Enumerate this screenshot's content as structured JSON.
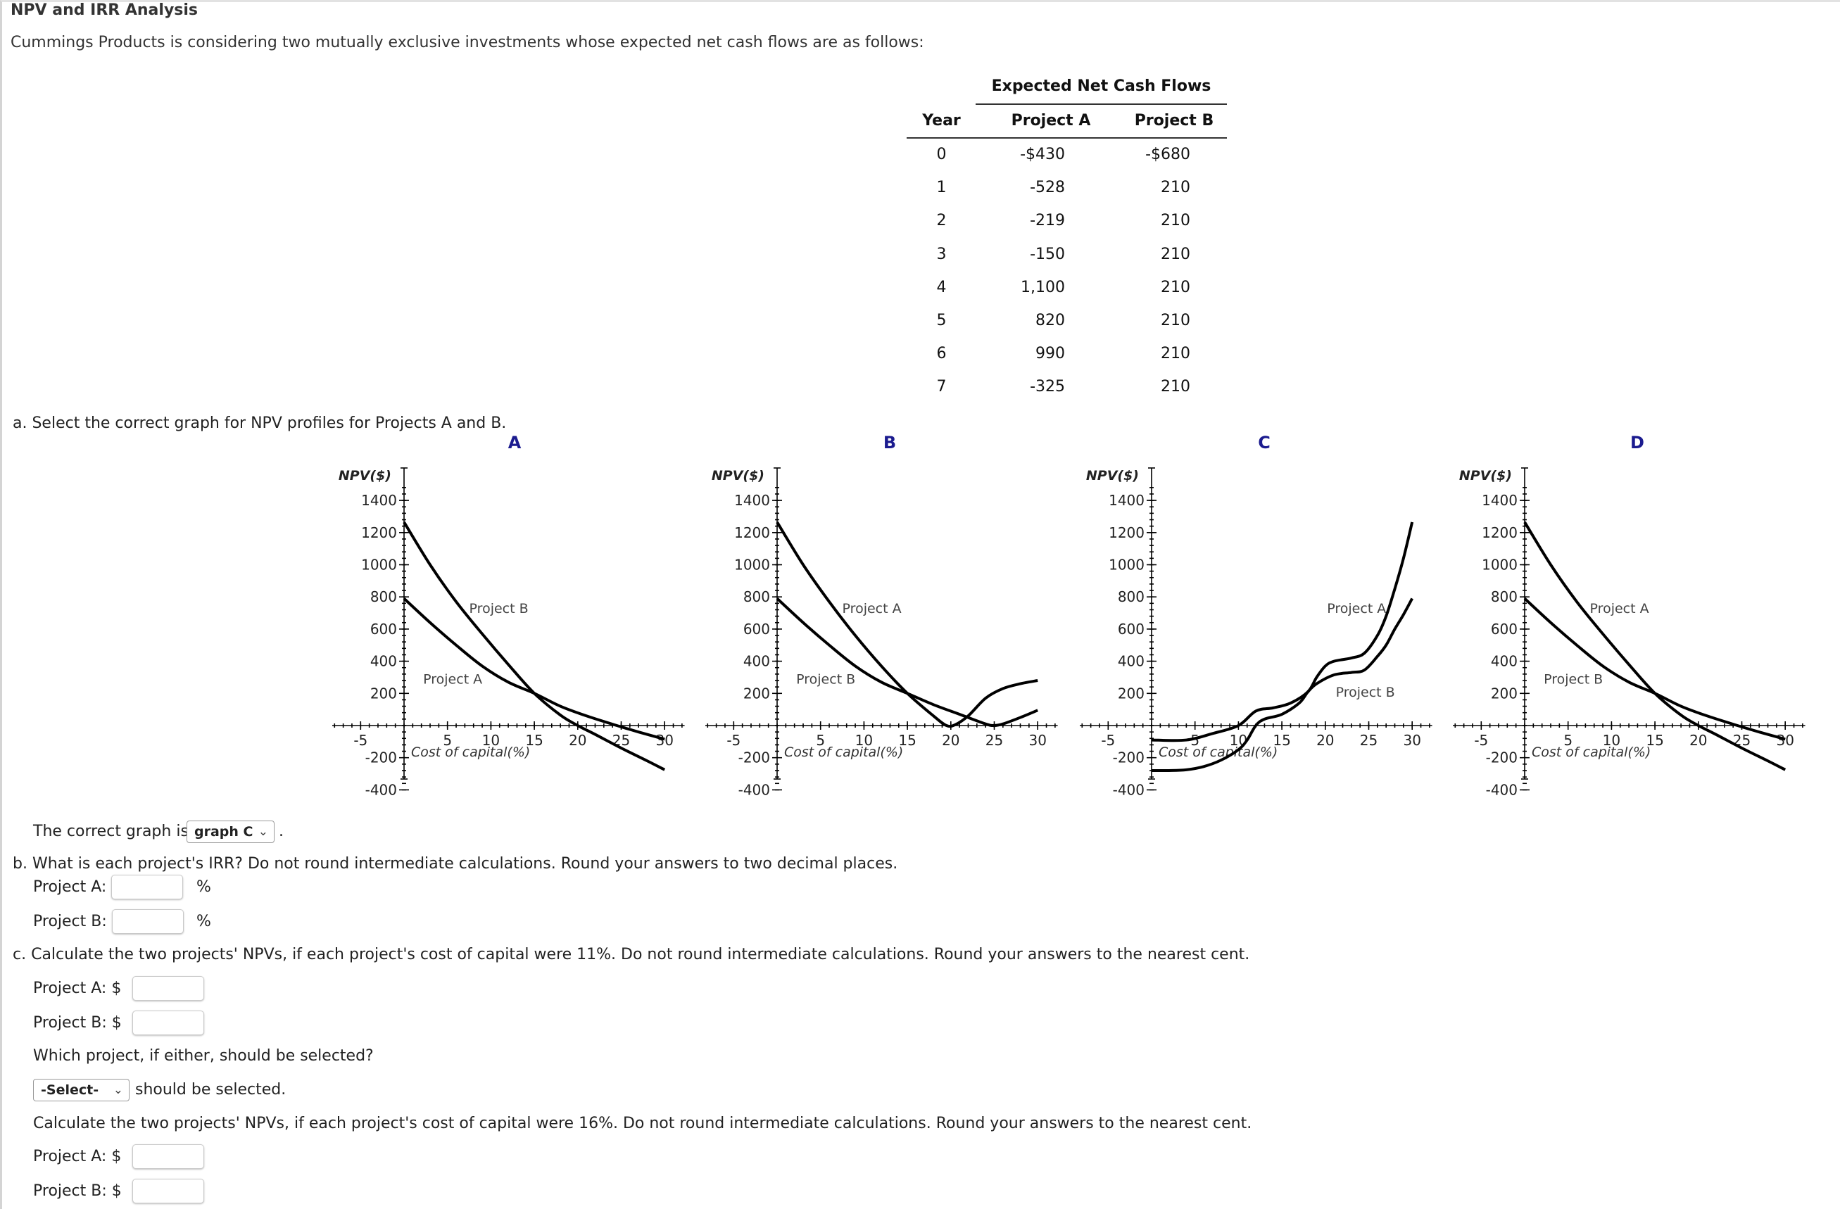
{
  "header": {
    "title": "NPV and IRR Analysis",
    "intro": "Cummings Products is considering two mutually exclusive investments whose expected net cash flows are as follows:"
  },
  "cash_flow_table": {
    "caption": "Expected Net Cash Flows",
    "columns": [
      "Year",
      "Project A",
      "Project B"
    ],
    "rows": [
      {
        "year": "0",
        "a": "-$430",
        "b": "-$680"
      },
      {
        "year": "1",
        "a": "-528",
        "b": "210"
      },
      {
        "year": "2",
        "a": "-219",
        "b": "210"
      },
      {
        "year": "3",
        "a": "-150",
        "b": "210"
      },
      {
        "year": "4",
        "a": "1,100",
        "b": "210"
      },
      {
        "year": "5",
        "a": "820",
        "b": "210"
      },
      {
        "year": "6",
        "a": "990",
        "b": "210"
      },
      {
        "year": "7",
        "a": "-325",
        "b": "210"
      }
    ]
  },
  "part_a": {
    "prompt": "a. Select the correct graph for NPV profiles for Projects A and B.",
    "answer_prefix": "The correct graph is",
    "answer_selected": "graph C",
    "answer_suffix": "."
  },
  "part_b": {
    "prompt": "b. What is each project's IRR? Do not round intermediate calculations. Round your answers to two decimal places.",
    "project_a_label": "Project A:",
    "project_b_label": "Project B:",
    "unit": "%",
    "project_a_value": "",
    "project_b_value": ""
  },
  "part_c": {
    "prompt_11": "c. Calculate the two projects' NPVs, if each project's cost of capital were 11%. Do not round intermediate calculations. Round your answers to the nearest cent.",
    "project_a_label": "Project A: $",
    "project_b_label": "Project B: $",
    "which_prompt": "Which project, if either, should be selected?",
    "which_selected": "-Select-",
    "which_suffix": "should be selected.",
    "prompt_16": "Calculate the two projects' NPVs, if each project's cost of capital were 16%. Do not round intermediate calculations. Round your answers to the nearest cent.",
    "project_a_label_16": "Project A: $",
    "project_b_label_16": "Project B: $"
  },
  "icons": {
    "dropdown": "chevron-down-icon"
  },
  "colors": {
    "graph_letter": "#1b1b8f",
    "text": "#333333",
    "curve": "#000000"
  },
  "chart_data": [
    {
      "id": "A",
      "type": "line",
      "title": "A",
      "xlabel": "Cost of capital(%)",
      "ylabel": "NPV($)",
      "xticks": [
        -5,
        5,
        10,
        15,
        20,
        25,
        30
      ],
      "yticks": [
        1400,
        1200,
        1000,
        800,
        600,
        400,
        200,
        -200,
        -400
      ],
      "xlim": [
        -7,
        32
      ],
      "ylim": [
        -400,
        1500
      ],
      "series": [
        {
          "name": "Project B",
          "x": [
            0,
            3,
            6,
            9,
            12,
            15,
            18,
            20,
            22,
            25,
            28,
            30
          ],
          "y": [
            1265,
            1000,
            770,
            570,
            380,
            200,
            65,
            0,
            -55,
            -140,
            -220,
            -275
          ]
        },
        {
          "name": "Project A",
          "x": [
            0,
            3,
            6,
            9,
            12,
            15,
            18,
            21,
            24.5,
            27,
            30
          ],
          "y": [
            790,
            640,
            500,
            370,
            270,
            200,
            120,
            60,
            0,
            -40,
            -85
          ]
        }
      ],
      "labels": [
        {
          "text": "Project B",
          "x": 7.5,
          "y": 700
        },
        {
          "text": "Project A",
          "x": 2.2,
          "y": 260
        }
      ]
    },
    {
      "id": "B",
      "type": "line",
      "title": "B",
      "xlabel": "Cost of capital(%)",
      "ylabel": "NPV($)",
      "xticks": [
        -5,
        5,
        10,
        15,
        20,
        25,
        30
      ],
      "yticks": [
        1400,
        1200,
        1000,
        800,
        600,
        400,
        200,
        -200,
        -400
      ],
      "xlim": [
        -7,
        32
      ],
      "ylim": [
        -400,
        1500
      ],
      "series": [
        {
          "name": "Project A",
          "x": [
            0,
            3,
            6,
            9,
            12,
            15,
            18,
            19.5,
            20.5,
            22,
            24,
            26,
            28,
            30
          ],
          "y": [
            1265,
            1000,
            770,
            560,
            370,
            200,
            60,
            0,
            5,
            60,
            170,
            230,
            260,
            280
          ]
        },
        {
          "name": "Project B",
          "x": [
            0,
            3,
            6,
            9,
            12,
            15,
            18,
            21,
            24,
            25,
            26,
            28,
            30
          ],
          "y": [
            790,
            640,
            500,
            370,
            270,
            200,
            130,
            70,
            10,
            0,
            10,
            50,
            95
          ]
        }
      ],
      "labels": [
        {
          "text": "Project A",
          "x": 7.5,
          "y": 700
        },
        {
          "text": "Project B",
          "x": 2.2,
          "y": 260
        }
      ]
    },
    {
      "id": "C",
      "type": "line",
      "title": "C",
      "xlabel": "Cost of capital(%)",
      "ylabel": "NPV($)",
      "xticks": [
        -5,
        5,
        10,
        15,
        20,
        25,
        30
      ],
      "yticks": [
        1400,
        1200,
        1000,
        800,
        600,
        400,
        200,
        -200,
        -400
      ],
      "xlim": [
        -7,
        32
      ],
      "ylim": [
        -400,
        1500
      ],
      "series": [
        {
          "name": "Project A",
          "x": [
            0,
            4,
            7,
            10,
            12,
            14,
            16,
            18,
            19,
            20,
            21,
            23,
            24.5,
            26,
            27,
            28,
            29,
            30
          ],
          "y": [
            -90,
            -90,
            -50,
            0,
            90,
            110,
            140,
            210,
            300,
            370,
            400,
            420,
            450,
            560,
            680,
            850,
            1040,
            1265
          ]
        },
        {
          "name": "Project B",
          "x": [
            0,
            2,
            4,
            6,
            8,
            10,
            11,
            12,
            13,
            15,
            17,
            18,
            19,
            21,
            23,
            24.5,
            26,
            27,
            28,
            29,
            30
          ],
          "y": [
            -280,
            -280,
            -275,
            -255,
            -215,
            -150,
            -90,
            0,
            40,
            70,
            140,
            210,
            260,
            315,
            330,
            345,
            430,
            500,
            600,
            690,
            790
          ]
        }
      ],
      "labels": [
        {
          "text": "Project A",
          "x": 20.2,
          "y": 700
        },
        {
          "text": "Project B",
          "x": 21.2,
          "y": 180
        }
      ]
    },
    {
      "id": "D",
      "type": "line",
      "title": "D",
      "xlabel": "Cost of capital(%)",
      "ylabel": "NPV($)",
      "xticks": [
        -5,
        5,
        10,
        15,
        20,
        25,
        30
      ],
      "yticks": [
        1400,
        1200,
        1000,
        800,
        600,
        400,
        200,
        -200,
        -400
      ],
      "xlim": [
        -7,
        32
      ],
      "ylim": [
        -400,
        1500
      ],
      "series": [
        {
          "name": "Project A",
          "x": [
            0,
            3,
            6,
            9,
            12,
            15,
            18,
            20,
            22,
            25,
            28,
            30
          ],
          "y": [
            1265,
            1000,
            770,
            570,
            380,
            200,
            65,
            0,
            -55,
            -140,
            -220,
            -275
          ]
        },
        {
          "name": "Project B",
          "x": [
            0,
            3,
            6,
            9,
            12,
            15,
            18,
            21,
            24.5,
            27,
            30
          ],
          "y": [
            790,
            640,
            500,
            370,
            270,
            200,
            120,
            60,
            0,
            -40,
            -85
          ]
        }
      ],
      "labels": [
        {
          "text": "Project A",
          "x": 7.5,
          "y": 700
        },
        {
          "text": "Project B",
          "x": 2.2,
          "y": 260
        }
      ]
    }
  ]
}
